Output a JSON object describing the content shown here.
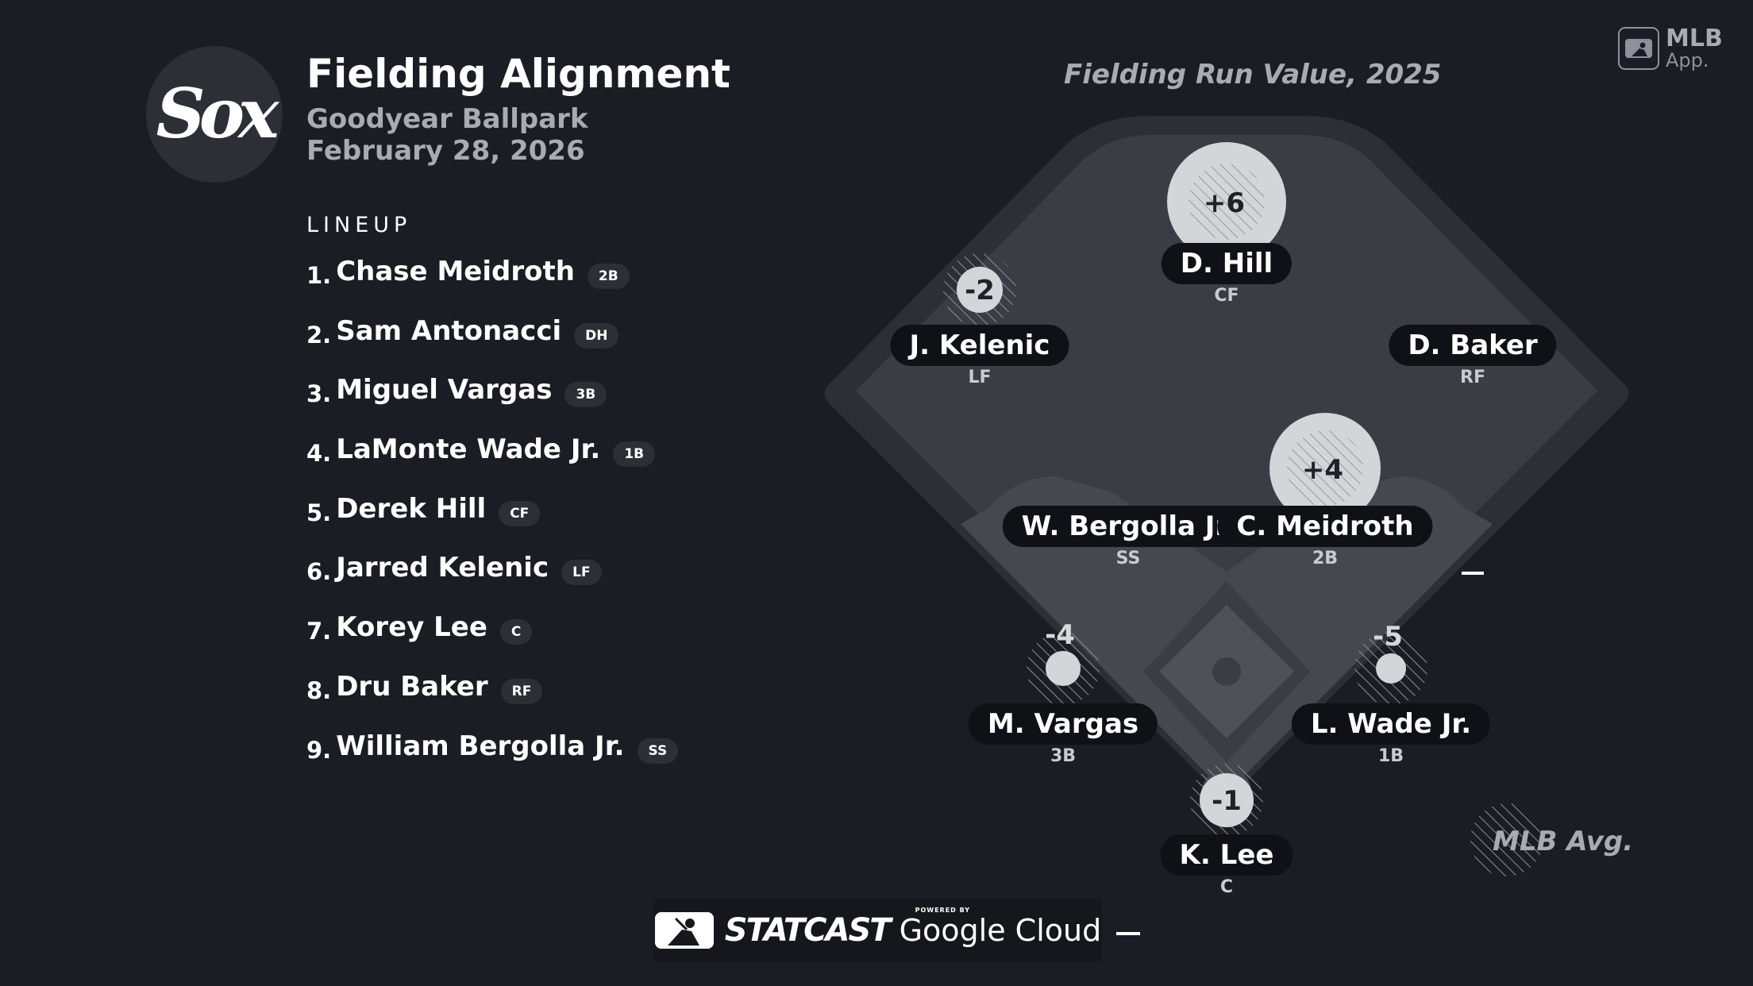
{
  "header": {
    "team_logo_text": "Sox",
    "title": "Fielding Alignment",
    "venue": "Goodyear Ballpark",
    "date": "February 28, 2026"
  },
  "lineup": {
    "label": "LINEUP",
    "players": [
      {
        "num": "1.",
        "name": "Chase Meidroth",
        "pos": "2B"
      },
      {
        "num": "2.",
        "name": "Sam Antonacci",
        "pos": "DH"
      },
      {
        "num": "3.",
        "name": "Miguel Vargas",
        "pos": "3B"
      },
      {
        "num": "4.",
        "name": "LaMonte Wade Jr.",
        "pos": "1B"
      },
      {
        "num": "5.",
        "name": "Derek Hill",
        "pos": "CF"
      },
      {
        "num": "6.",
        "name": "Jarred Kelenic",
        "pos": "LF"
      },
      {
        "num": "7.",
        "name": "Korey Lee",
        "pos": "C"
      },
      {
        "num": "8.",
        "name": "Dru Baker",
        "pos": "RF"
      },
      {
        "num": "9.",
        "name": "William Bergolla Jr.",
        "pos": "SS"
      }
    ]
  },
  "field": {
    "title": "Fielding Run Value, 2025",
    "legend_label": "MLB Avg.",
    "fielders": {
      "cf": {
        "name": "D. Hill",
        "pos": "CF",
        "value": "+6"
      },
      "lf": {
        "name": "J. Kelenic",
        "pos": "LF",
        "value": "-2"
      },
      "rf": {
        "name": "D. Baker",
        "pos": "RF",
        "value": ""
      },
      "ss": {
        "name": "W. Bergolla Jr.",
        "pos": "SS",
        "value": ""
      },
      "2b": {
        "name": "C. Meidroth",
        "pos": "2B",
        "value": "+4"
      },
      "3b": {
        "name": "M. Vargas",
        "pos": "3B",
        "value": "-4"
      },
      "1b": {
        "name": "L. Wade Jr.",
        "pos": "1B",
        "value": "-5"
      },
      "c": {
        "name": "K. Lee",
        "pos": "C",
        "value": "-1"
      }
    }
  },
  "branding": {
    "mlb_app_line1": "MLB",
    "mlb_app_line2": "App.",
    "statcast": "STATCAST",
    "powered_by": "POWERED BY",
    "google_cloud": "Google Cloud"
  },
  "colors": {
    "background": "#1a1d24",
    "field": "#3a3d44",
    "infield": "#45484f",
    "bubble": "#d3d5d9",
    "pill": "#0f1116"
  }
}
